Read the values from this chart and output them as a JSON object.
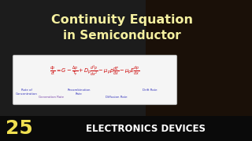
{
  "title_line1": "Continuity Equation",
  "title_line2": "in Semiconductor",
  "title_color": "#F5F0A0",
  "bg_color": "#1c1c1c",
  "person_color": "#2a1a0a",
  "box_bg": "#f5f5f5",
  "box_edge": "#bbbbbb",
  "equation": "$\\frac{dp}{dt} = G - \\frac{\\Delta p}{\\tau_p} + D_p\\frac{d^2p}{dx^2} - \\mu_p p\\frac{dE}{dx} - \\mu_p E\\frac{dp}{dx}$",
  "eq_color": "#cc0000",
  "label_rate_conc": "Rate of\nConcentration",
  "label_gen": "Generation Rate",
  "label_recomb": "Recombination\nRate",
  "label_diff": "Diffusion Rate",
  "label_drift": "Drift Rate",
  "label_color_blue": "#3333bb",
  "label_color_purple": "#7744aa",
  "bottom_num": "25",
  "bottom_text": "ELECTRONICS DEVICES",
  "bottom_num_color": "#F0E050",
  "bottom_text_color": "#ffffff",
  "bottom_bg": "#0a0a0a",
  "title_fontsize": 11.5,
  "title2_fontsize": 11.0
}
